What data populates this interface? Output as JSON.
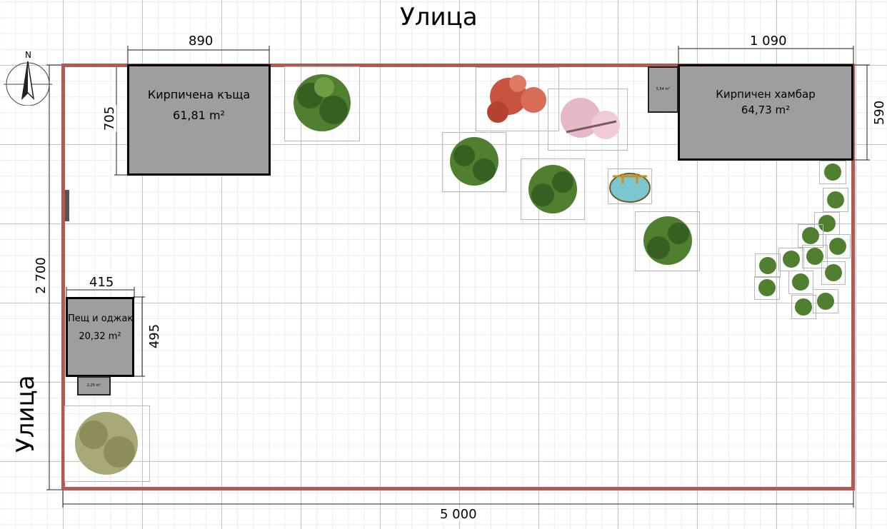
{
  "streets": {
    "top": "Улица",
    "left": "Улица"
  },
  "compass": {
    "north_label": "N"
  },
  "plot": {
    "width_label": "5 000",
    "height_label": "2 700"
  },
  "buildings": {
    "house": {
      "name": "Кирпичена къща",
      "area": "61,81 m²",
      "width_label": "890",
      "height_label": "705"
    },
    "barn": {
      "name": "Кирпичен хамбар",
      "area": "64,73 m²",
      "width_label": "1 090",
      "height_label": "590"
    },
    "barn_annex": {
      "area": "5,54 m²"
    },
    "oven": {
      "name": "Пещ и оджак",
      "area": "20,32 m²",
      "width_label": "415",
      "height_label": "495"
    },
    "oven_annex": {
      "area": "2,25 m²"
    }
  },
  "colors": {
    "plot_border": "#b05a52",
    "building_fill": "#9e9e9e",
    "tree_green": "#4f7f2f",
    "tree_dark": "#356021",
    "tree_red": "#c8533f",
    "tree_pink": "#e6b9c8",
    "tree_olive": "#a8a878",
    "pond_water": "#7cc6cf"
  }
}
